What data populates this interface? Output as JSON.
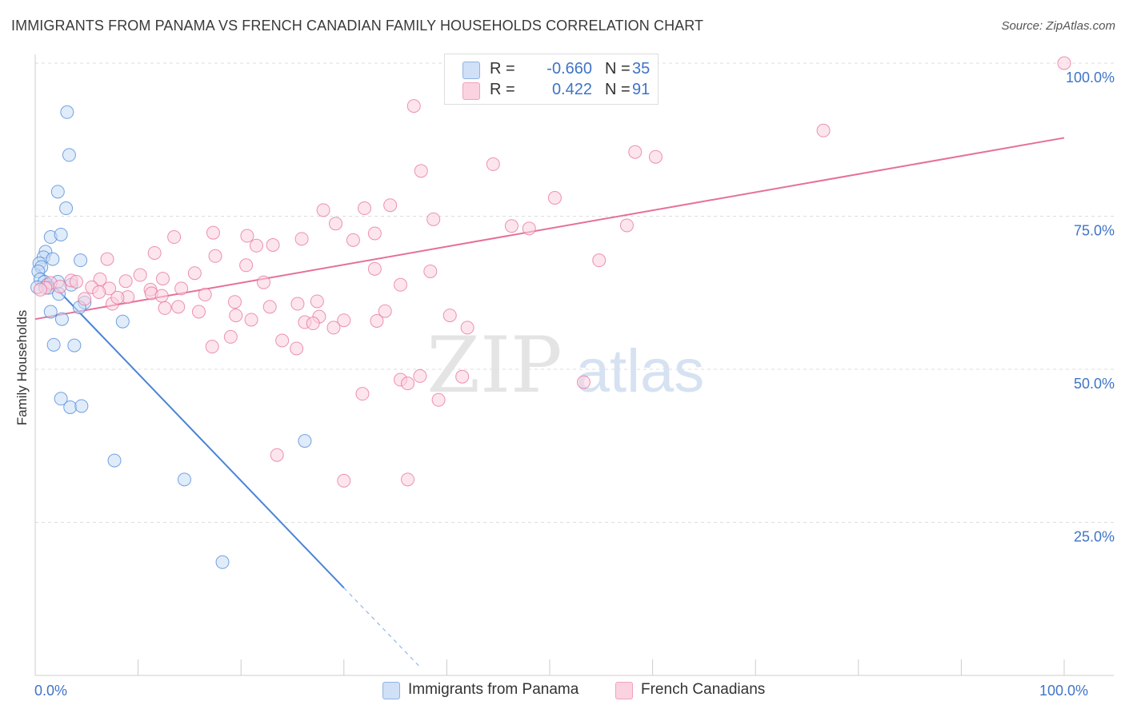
{
  "title": "IMMIGRANTS FROM PANAMA VS FRENCH CANADIAN FAMILY HOUSEHOLDS CORRELATION CHART",
  "source": "Source: ZipAtlas.com",
  "watermark": {
    "zip": "ZIP",
    "atlas": "atlas"
  },
  "legend_top": [
    {
      "r_label": "R =",
      "r_value": "-0.660",
      "n_label": "N =",
      "n_value": "35",
      "color": "#a9c8f0"
    },
    {
      "r_label": "R =",
      "r_value": "0.422",
      "n_label": "N =",
      "n_value": "91",
      "color": "#f7b6cb"
    }
  ],
  "legend_bottom": [
    {
      "label": "Immigrants from Panama",
      "color": "#a9c8f0"
    },
    {
      "label": "French Canadians",
      "color": "#f7b6cb"
    }
  ],
  "chart_data": {
    "type": "scatter",
    "ylabel": "Family Households",
    "xlim": [
      0,
      100
    ],
    "ylim": [
      0,
      100
    ],
    "x_tick_labels": [
      {
        "value": 0,
        "label": "0.0%"
      },
      {
        "value": 100,
        "label": "100.0%"
      }
    ],
    "y_tick_labels": [
      {
        "value": 25,
        "label": "25.0%"
      },
      {
        "value": 50,
        "label": "50.0%"
      },
      {
        "value": 75,
        "label": "75.0%"
      },
      {
        "value": 100,
        "label": "100.0%"
      }
    ],
    "grid": "horizontal dashed",
    "colors": {
      "blue": "#4a84d6",
      "blue_fill": "#a9c8f0",
      "pink": "#e57099",
      "pink_fill": "#f7b6cb",
      "tick_label": "#3f74c7"
    },
    "series": [
      {
        "name": "Immigrants from Panama",
        "color": "#4a84d6",
        "points": [
          [
            3.1,
            92.0
          ],
          [
            3.3,
            85.0
          ],
          [
            2.2,
            79.0
          ],
          [
            3.0,
            76.3
          ],
          [
            1.5,
            71.6
          ],
          [
            2.5,
            72.0
          ],
          [
            1.0,
            69.2
          ],
          [
            0.8,
            68.3
          ],
          [
            1.7,
            68.0
          ],
          [
            4.4,
            67.8
          ],
          [
            0.4,
            67.3
          ],
          [
            0.6,
            66.7
          ],
          [
            0.3,
            66.0
          ],
          [
            0.5,
            64.7
          ],
          [
            0.9,
            64.3
          ],
          [
            1.2,
            63.8
          ],
          [
            2.2,
            64.3
          ],
          [
            3.5,
            63.8
          ],
          [
            0.2,
            63.4
          ],
          [
            1.3,
            63.3
          ],
          [
            2.3,
            62.3
          ],
          [
            4.8,
            60.9
          ],
          [
            4.3,
            60.1
          ],
          [
            1.5,
            59.4
          ],
          [
            2.6,
            58.2
          ],
          [
            8.5,
            57.8
          ],
          [
            1.8,
            54.0
          ],
          [
            3.8,
            53.9
          ],
          [
            2.5,
            45.2
          ],
          [
            3.4,
            43.8
          ],
          [
            4.5,
            44.0
          ],
          [
            7.7,
            35.1
          ],
          [
            14.5,
            32.0
          ],
          [
            26.2,
            38.3
          ],
          [
            18.2,
            18.5
          ]
        ],
        "trend": {
          "x0": 0,
          "y0": 66.8,
          "x1": 30,
          "y1": 14.3,
          "dashed_to_x": 37.5,
          "dashed_to_y": 1.2
        }
      },
      {
        "name": "French Canadians",
        "color": "#e57099",
        "points": [
          [
            47.5,
            100.0
          ],
          [
            50.5,
            100.0
          ],
          [
            59.8,
            100.0
          ],
          [
            100,
            100.0
          ],
          [
            36.8,
            93.0
          ],
          [
            76.6,
            89.0
          ],
          [
            58.3,
            85.5
          ],
          [
            60.3,
            84.7
          ],
          [
            44.5,
            83.5
          ],
          [
            37.5,
            82.4
          ],
          [
            50.5,
            78.0
          ],
          [
            32.0,
            76.3
          ],
          [
            28.0,
            76.0
          ],
          [
            34.5,
            76.8
          ],
          [
            38.7,
            74.5
          ],
          [
            29.2,
            73.8
          ],
          [
            46.3,
            73.4
          ],
          [
            48.0,
            73.0
          ],
          [
            57.5,
            73.5
          ],
          [
            13.5,
            71.6
          ],
          [
            17.3,
            72.3
          ],
          [
            20.6,
            71.8
          ],
          [
            25.9,
            71.3
          ],
          [
            30.9,
            71.1
          ],
          [
            33.0,
            72.2
          ],
          [
            21.5,
            70.2
          ],
          [
            23.1,
            70.3
          ],
          [
            11.6,
            69.0
          ],
          [
            17.5,
            68.5
          ],
          [
            7.0,
            68.0
          ],
          [
            20.5,
            67.0
          ],
          [
            33.0,
            66.4
          ],
          [
            54.8,
            67.8
          ],
          [
            15.5,
            65.7
          ],
          [
            10.2,
            65.4
          ],
          [
            12.4,
            64.8
          ],
          [
            6.3,
            64.7
          ],
          [
            8.8,
            64.4
          ],
          [
            22.2,
            64.2
          ],
          [
            35.5,
            63.8
          ],
          [
            3.5,
            64.5
          ],
          [
            4.0,
            64.3
          ],
          [
            1.5,
            64.1
          ],
          [
            2.4,
            63.5
          ],
          [
            1.0,
            63.3
          ],
          [
            0.5,
            63.0
          ],
          [
            5.5,
            63.4
          ],
          [
            7.2,
            63.2
          ],
          [
            14.2,
            63.2
          ],
          [
            11.2,
            63.0
          ],
          [
            6.2,
            62.6
          ],
          [
            11.3,
            62.4
          ],
          [
            16.5,
            62.2
          ],
          [
            12.3,
            62.0
          ],
          [
            9.0,
            61.8
          ],
          [
            4.8,
            61.5
          ],
          [
            27.4,
            61.1
          ],
          [
            19.4,
            61.0
          ],
          [
            25.5,
            60.7
          ],
          [
            13.9,
            60.2
          ],
          [
            12.6,
            60.0
          ],
          [
            7.5,
            60.7
          ],
          [
            15.9,
            59.4
          ],
          [
            19.5,
            58.8
          ],
          [
            27.6,
            58.6
          ],
          [
            40.3,
            58.8
          ],
          [
            21.0,
            58.1
          ],
          [
            30.0,
            58.0
          ],
          [
            33.2,
            57.9
          ],
          [
            26.2,
            57.7
          ],
          [
            29.0,
            56.8
          ],
          [
            42.0,
            56.8
          ],
          [
            19.0,
            55.3
          ],
          [
            24.0,
            54.7
          ],
          [
            17.2,
            53.7
          ],
          [
            25.4,
            53.4
          ],
          [
            41.5,
            48.8
          ],
          [
            37.4,
            48.9
          ],
          [
            35.5,
            48.3
          ],
          [
            36.2,
            47.7
          ],
          [
            53.3,
            47.9
          ],
          [
            31.8,
            46.0
          ],
          [
            39.2,
            45.0
          ],
          [
            23.5,
            36.0
          ],
          [
            30.0,
            31.8
          ],
          [
            36.2,
            32.0
          ],
          [
            34.0,
            59.5
          ],
          [
            38.4,
            66.0
          ],
          [
            27.0,
            57.5
          ],
          [
            22.8,
            60.2
          ],
          [
            8.0,
            61.7
          ]
        ],
        "trend": {
          "x0": 0,
          "y0": 58.2,
          "x1": 100,
          "y1": 87.8
        }
      }
    ]
  }
}
